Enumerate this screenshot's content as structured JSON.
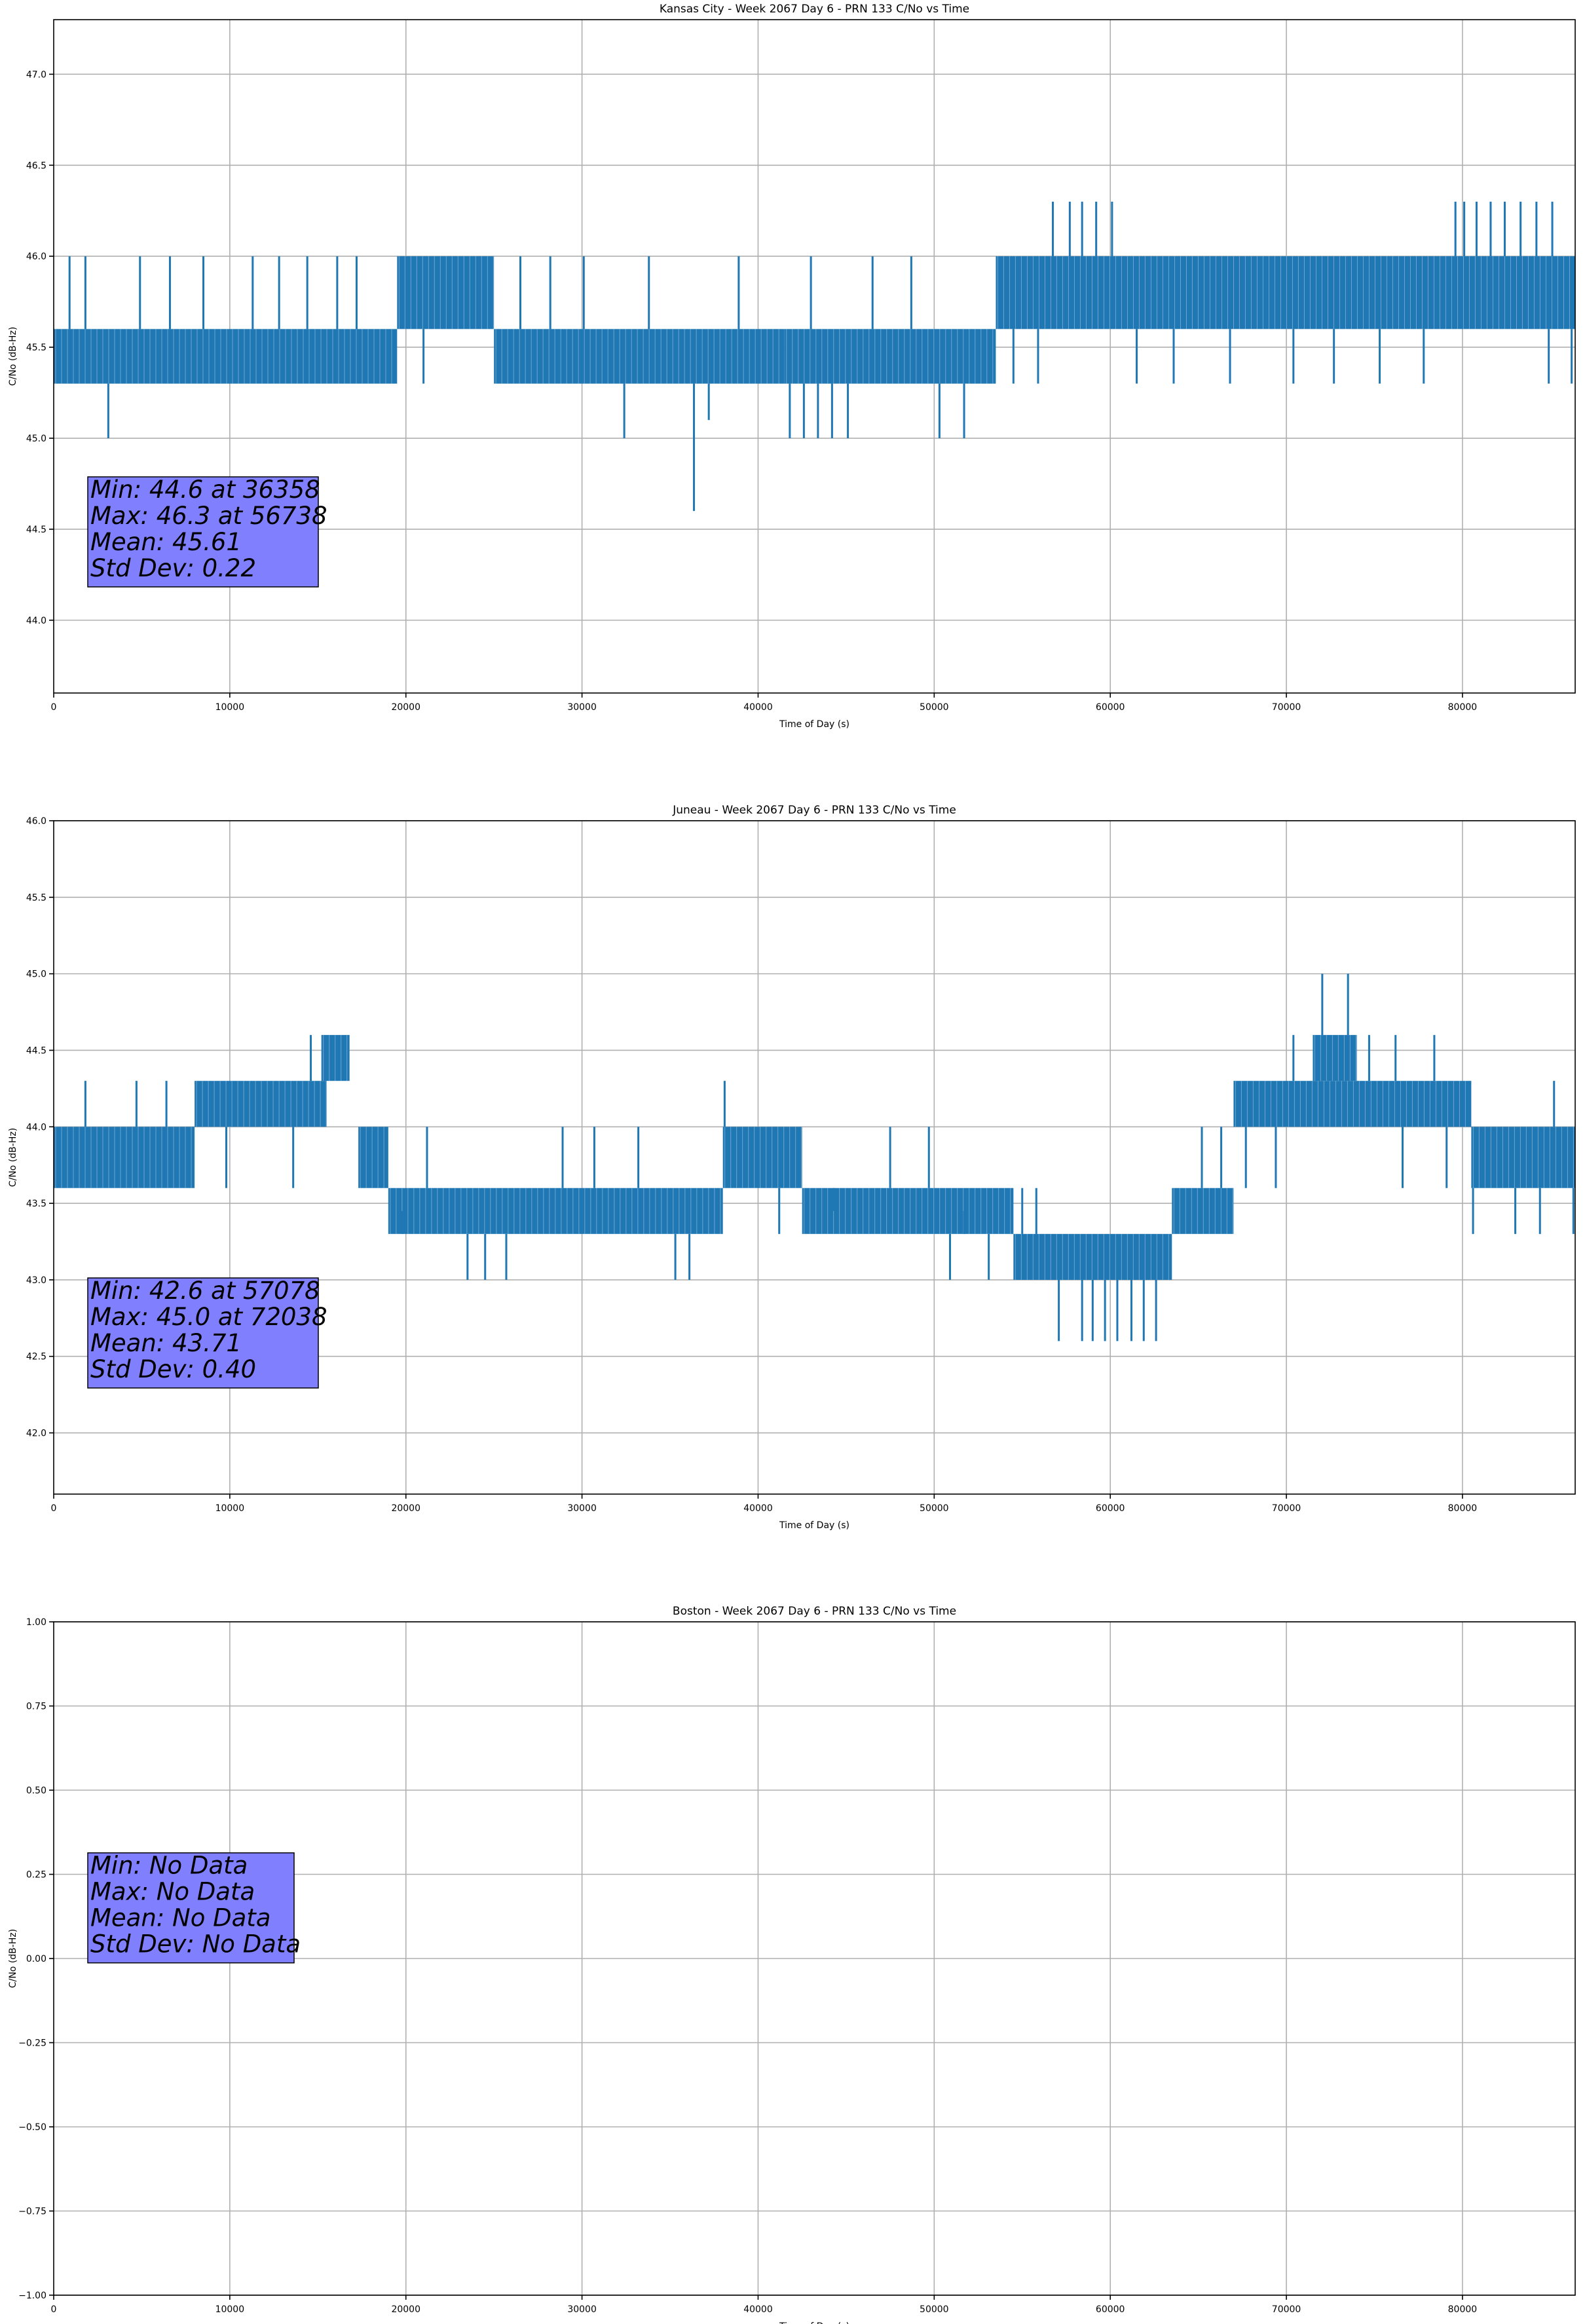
{
  "chart_data": [
    {
      "type": "line",
      "title": "Kansas City - Week 2067 Day 6 - PRN 133 C/No vs Time",
      "xlabel": "Time of Day (s)",
      "ylabel": "C/No (dB-Hz)",
      "xlim": [
        0,
        86400
      ],
      "ylim": [
        43.6,
        47.3
      ],
      "xticks": [
        0,
        10000,
        20000,
        30000,
        40000,
        50000,
        60000,
        70000,
        80000
      ],
      "yticks": [
        44.0,
        44.5,
        45.0,
        45.5,
        46.0,
        46.5,
        47.0
      ],
      "grid": true,
      "series_color": "#1f77b4",
      "series": {
        "name": "C/No",
        "segments": [
          {
            "x0": 0,
            "x1": 19500,
            "low": 45.3,
            "high": 45.6
          },
          {
            "x0": 19500,
            "x1": 25000,
            "low": 45.6,
            "high": 46.0
          },
          {
            "x0": 25000,
            "x1": 41500,
            "low": 45.3,
            "high": 45.6
          },
          {
            "x0": 41500,
            "x1": 53500,
            "low": 45.3,
            "high": 45.6
          },
          {
            "x0": 53500,
            "x1": 86400,
            "low": 45.6,
            "high": 46.0
          }
        ],
        "spikes": [
          {
            "x": 3100,
            "y": 45.0
          },
          {
            "x": 900,
            "y": 46.0
          },
          {
            "x": 1800,
            "y": 46.0
          },
          {
            "x": 4900,
            "y": 46.0
          },
          {
            "x": 6600,
            "y": 46.0
          },
          {
            "x": 8500,
            "y": 46.0
          },
          {
            "x": 11300,
            "y": 46.0
          },
          {
            "x": 12800,
            "y": 46.0
          },
          {
            "x": 14400,
            "y": 46.0
          },
          {
            "x": 16100,
            "y": 46.0
          },
          {
            "x": 17200,
            "y": 46.0
          },
          {
            "x": 21000,
            "y": 45.3
          },
          {
            "x": 26500,
            "y": 46.0
          },
          {
            "x": 28200,
            "y": 46.0
          },
          {
            "x": 30100,
            "y": 46.0
          },
          {
            "x": 32400,
            "y": 45.0
          },
          {
            "x": 33800,
            "y": 46.0
          },
          {
            "x": 36358,
            "y": 44.6
          },
          {
            "x": 37200,
            "y": 45.1
          },
          {
            "x": 38900,
            "y": 46.0
          },
          {
            "x": 41800,
            "y": 45.0
          },
          {
            "x": 42600,
            "y": 45.0
          },
          {
            "x": 43400,
            "y": 45.0
          },
          {
            "x": 44200,
            "y": 45.0
          },
          {
            "x": 45100,
            "y": 45.0
          },
          {
            "x": 43000,
            "y": 46.0
          },
          {
            "x": 46500,
            "y": 46.0
          },
          {
            "x": 48700,
            "y": 46.0
          },
          {
            "x": 50300,
            "y": 45.0
          },
          {
            "x": 51700,
            "y": 45.0
          },
          {
            "x": 54500,
            "y": 45.3
          },
          {
            "x": 55900,
            "y": 45.3
          },
          {
            "x": 56738,
            "y": 46.3
          },
          {
            "x": 57700,
            "y": 46.3
          },
          {
            "x": 58400,
            "y": 46.3
          },
          {
            "x": 59200,
            "y": 46.3
          },
          {
            "x": 60100,
            "y": 46.3
          },
          {
            "x": 61500,
            "y": 45.3
          },
          {
            "x": 63600,
            "y": 45.3
          },
          {
            "x": 66800,
            "y": 45.3
          },
          {
            "x": 70400,
            "y": 45.3
          },
          {
            "x": 72700,
            "y": 45.3
          },
          {
            "x": 75300,
            "y": 45.3
          },
          {
            "x": 77800,
            "y": 45.3
          },
          {
            "x": 79600,
            "y": 46.3
          },
          {
            "x": 80100,
            "y": 46.3
          },
          {
            "x": 80800,
            "y": 46.3
          },
          {
            "x": 81600,
            "y": 46.3
          },
          {
            "x": 82400,
            "y": 46.3
          },
          {
            "x": 83300,
            "y": 46.3
          },
          {
            "x": 84200,
            "y": 46.3
          },
          {
            "x": 85100,
            "y": 46.3
          },
          {
            "x": 84900,
            "y": 45.3
          },
          {
            "x": 86200,
            "y": 45.3
          }
        ]
      },
      "stats_box": {
        "lines": [
          "Min: 44.6 at 36358",
          "Max: 46.3 at 56738",
          "Mean: 45.61",
          "Std Dev: 0.22"
        ],
        "color": "#8080ff"
      }
    },
    {
      "type": "line",
      "title": "Juneau - Week 2067 Day 6 - PRN 133 C/No vs Time",
      "xlabel": "Time of Day (s)",
      "ylabel": "C/No (dB-Hz)",
      "xlim": [
        0,
        86400
      ],
      "ylim": [
        41.6,
        46.0
      ],
      "xticks": [
        0,
        10000,
        20000,
        30000,
        40000,
        50000,
        60000,
        70000,
        80000
      ],
      "yticks": [
        42.0,
        42.5,
        43.0,
        43.5,
        44.0,
        44.5,
        45.0,
        45.5,
        46.0
      ],
      "grid": true,
      "series_color": "#1f77b4",
      "series": {
        "name": "C/No",
        "segments": [
          {
            "x0": 0,
            "x1": 8000,
            "low": 43.6,
            "high": 44.0
          },
          {
            "x0": 8000,
            "x1": 15500,
            "low": 44.0,
            "high": 44.3
          },
          {
            "x0": 15200,
            "x1": 16800,
            "low": 44.3,
            "high": 44.6
          },
          {
            "x0": 17300,
            "x1": 19000,
            "low": 43.6,
            "high": 44.0
          },
          {
            "x0": 19000,
            "x1": 38000,
            "low": 43.3,
            "high": 43.6
          },
          {
            "x0": 38000,
            "x1": 42500,
            "low": 43.6,
            "high": 44.0
          },
          {
            "x0": 42500,
            "x1": 54500,
            "low": 43.3,
            "high": 43.6
          },
          {
            "x0": 54500,
            "x1": 63500,
            "low": 43.0,
            "high": 43.3
          },
          {
            "x0": 63500,
            "x1": 67000,
            "low": 43.3,
            "high": 43.6
          },
          {
            "x0": 67000,
            "x1": 80500,
            "low": 44.0,
            "high": 44.3
          },
          {
            "x0": 71500,
            "x1": 74000,
            "low": 44.3,
            "high": 44.6
          },
          {
            "x0": 80500,
            "x1": 86400,
            "low": 43.6,
            "high": 44.0
          }
        ],
        "spikes": [
          {
            "x": 1800,
            "y": 44.3
          },
          {
            "x": 4700,
            "y": 44.3
          },
          {
            "x": 6400,
            "y": 44.3
          },
          {
            "x": 9800,
            "y": 43.6
          },
          {
            "x": 13600,
            "y": 43.6
          },
          {
            "x": 14600,
            "y": 44.6
          },
          {
            "x": 19800,
            "y": 43.3
          },
          {
            "x": 21200,
            "y": 44.0
          },
          {
            "x": 23500,
            "y": 43.0
          },
          {
            "x": 24500,
            "y": 43.0
          },
          {
            "x": 25700,
            "y": 43.0
          },
          {
            "x": 28900,
            "y": 44.0
          },
          {
            "x": 30700,
            "y": 44.0
          },
          {
            "x": 33200,
            "y": 44.0
          },
          {
            "x": 35300,
            "y": 43.0
          },
          {
            "x": 36100,
            "y": 43.0
          },
          {
            "x": 38100,
            "y": 44.3
          },
          {
            "x": 41200,
            "y": 43.3
          },
          {
            "x": 44300,
            "y": 43.6
          },
          {
            "x": 47500,
            "y": 44.0
          },
          {
            "x": 49700,
            "y": 44.0
          },
          {
            "x": 50900,
            "y": 43.0
          },
          {
            "x": 51700,
            "y": 43.3
          },
          {
            "x": 53100,
            "y": 43.0
          },
          {
            "x": 55000,
            "y": 43.6
          },
          {
            "x": 55800,
            "y": 43.6
          },
          {
            "x": 57078,
            "y": 42.6
          },
          {
            "x": 58400,
            "y": 42.6
          },
          {
            "x": 59000,
            "y": 42.6
          },
          {
            "x": 59700,
            "y": 42.6
          },
          {
            "x": 60400,
            "y": 42.6
          },
          {
            "x": 61200,
            "y": 42.6
          },
          {
            "x": 61900,
            "y": 42.6
          },
          {
            "x": 62600,
            "y": 42.6
          },
          {
            "x": 65200,
            "y": 44.0
          },
          {
            "x": 66300,
            "y": 44.0
          },
          {
            "x": 67700,
            "y": 43.6
          },
          {
            "x": 69400,
            "y": 43.6
          },
          {
            "x": 70400,
            "y": 44.6
          },
          {
            "x": 72038,
            "y": 45.0
          },
          {
            "x": 73500,
            "y": 45.0
          },
          {
            "x": 74700,
            "y": 44.6
          },
          {
            "x": 76200,
            "y": 44.6
          },
          {
            "x": 78400,
            "y": 44.6
          },
          {
            "x": 76600,
            "y": 43.6
          },
          {
            "x": 79100,
            "y": 43.6
          },
          {
            "x": 80600,
            "y": 43.3
          },
          {
            "x": 83000,
            "y": 43.3
          },
          {
            "x": 84400,
            "y": 43.3
          },
          {
            "x": 85200,
            "y": 44.3
          },
          {
            "x": 86300,
            "y": 43.3
          }
        ]
      },
      "stats_box": {
        "lines": [
          "Min: 42.6 at 57078",
          "Max: 45.0 at 72038",
          "Mean: 43.71",
          "Std Dev: 0.40"
        ],
        "color": "#8080ff"
      }
    },
    {
      "type": "line",
      "title": "Boston - Week 2067 Day 6 - PRN 133 C/No vs Time",
      "xlabel": "Time of Day (s)",
      "ylabel": "C/No (dB-Hz)",
      "xlim": [
        0,
        86400
      ],
      "ylim": [
        -1.0,
        1.0
      ],
      "xticks": [
        0,
        10000,
        20000,
        30000,
        40000,
        50000,
        60000,
        70000,
        80000
      ],
      "yticks": [
        -1.0,
        -0.75,
        -0.5,
        -0.25,
        0.0,
        0.25,
        0.5,
        0.75,
        1.0
      ],
      "ytick_labels": [
        "−1.00",
        "−0.75",
        "−0.50",
        "−0.25",
        "0.00",
        "0.25",
        "0.50",
        "0.75",
        "1.00"
      ],
      "grid": true,
      "series_color": "#1f77b4",
      "series": {
        "name": "C/No",
        "segments": [],
        "spikes": []
      },
      "stats_box": {
        "lines": [
          "Min: No Data",
          "Max: No Data",
          "Mean: No Data",
          "Std Dev: No Data"
        ],
        "color": "#8080ff"
      }
    }
  ]
}
